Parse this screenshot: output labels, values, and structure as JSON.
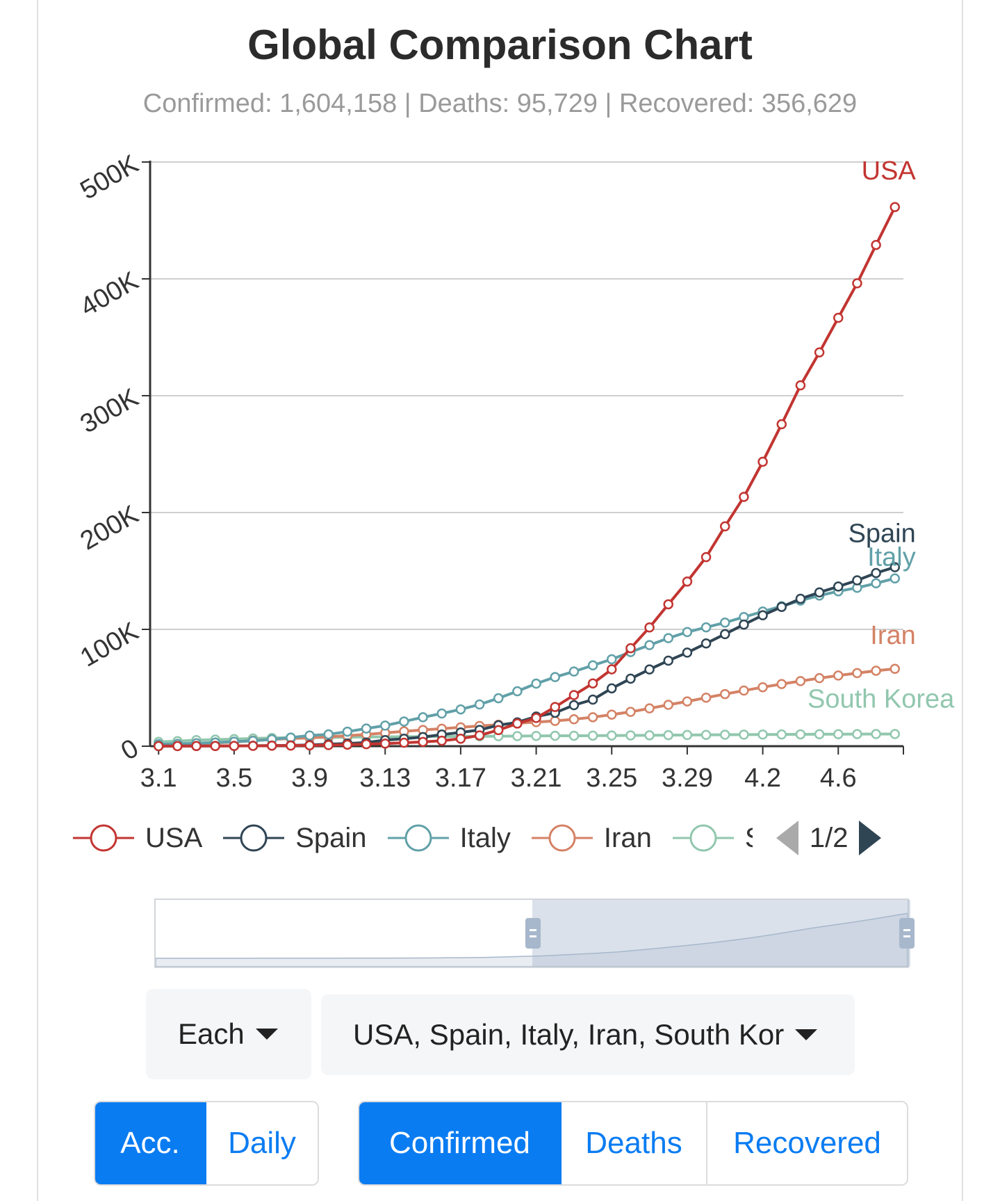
{
  "title": "Global Comparison Chart",
  "summary": "Confirmed: 1,604,158 | Deaths: 95,729 | Recovered: 356,629",
  "legend": {
    "items": [
      {
        "label": "USA",
        "color": "#c23531"
      },
      {
        "label": "Spain",
        "color": "#2f4554"
      },
      {
        "label": "Italy",
        "color": "#61a0a8"
      },
      {
        "label": "Iran",
        "color": "#d48265"
      },
      {
        "label": "S",
        "color": "#91c7ae"
      }
    ],
    "page": "1/2"
  },
  "controls": {
    "mode_select": "Each",
    "countries_select": "USA, Spain, Italy, Iran, South Kor",
    "accumulation": [
      {
        "label": "Acc.",
        "active": true
      },
      {
        "label": "Daily",
        "active": false
      }
    ],
    "metric": [
      {
        "label": "Confirmed",
        "active": true
      },
      {
        "label": "Deaths",
        "active": false
      },
      {
        "label": "Recovered",
        "active": false
      }
    ]
  },
  "chart_data": {
    "type": "line",
    "title": "Global Comparison Chart",
    "xlabel": "",
    "ylabel": "",
    "ylim": [
      0,
      500000
    ],
    "yticks": [
      "0",
      "100K",
      "200K",
      "300K",
      "400K",
      "500K"
    ],
    "xtick_labels": [
      "3.1",
      "3.5",
      "3.9",
      "3.13",
      "3.17",
      "3.21",
      "3.25",
      "3.29",
      "4.2",
      "4.6"
    ],
    "grid": true,
    "legend_position": "bottom",
    "x": [
      "3.1",
      "3.2",
      "3.3",
      "3.4",
      "3.5",
      "3.6",
      "3.7",
      "3.8",
      "3.9",
      "3.10",
      "3.11",
      "3.12",
      "3.13",
      "3.14",
      "3.15",
      "3.16",
      "3.17",
      "3.18",
      "3.19",
      "3.20",
      "3.21",
      "3.22",
      "3.23",
      "3.24",
      "3.25",
      "3.26",
      "3.27",
      "3.28",
      "3.29",
      "3.30",
      "3.31",
      "4.1",
      "4.2",
      "4.3",
      "4.4",
      "4.5",
      "4.6",
      "4.7",
      "4.8",
      "4.9"
    ],
    "series": [
      {
        "name": "USA",
        "color": "#c23531",
        "end_label": "USA",
        "values": [
          75,
          100,
          124,
          158,
          221,
          319,
          435,
          541,
          704,
          994,
          1301,
          1697,
          2247,
          2943,
          3680,
          4663,
          6411,
          9259,
          13789,
          19383,
          24207,
          33546,
          43734,
          53740,
          65778,
          83836,
          101657,
          121465,
          140909,
          161831,
          188172,
          213372,
          243453,
          275586,
          308850,
          337072,
          366667,
          396223,
          429052,
          461437
        ]
      },
      {
        "name": "Spain",
        "color": "#2f4554",
        "end_label": "Spain",
        "values": [
          84,
          120,
          165,
          222,
          259,
          400,
          500,
          673,
          1073,
          1695,
          2277,
          3146,
          5232,
          6391,
          7798,
          9942,
          11748,
          13910,
          17963,
          20410,
          25374,
          28603,
          35136,
          39885,
          49515,
          57786,
          65719,
          73235,
          80110,
          87956,
          95923,
          104118,
          112065,
          119199,
          126168,
          131646,
          136675,
          141942,
          148220,
          153222
        ]
      },
      {
        "name": "Italy",
        "color": "#61a0a8",
        "end_label": "Italy",
        "values": [
          1694,
          2036,
          2502,
          3089,
          3858,
          4636,
          5883,
          7375,
          9172,
          10149,
          12462,
          15113,
          17660,
          21157,
          24747,
          27980,
          31506,
          35713,
          41035,
          47021,
          53578,
          59138,
          63927,
          69176,
          74386,
          80589,
          86498,
          92472,
          97689,
          101739,
          105792,
          110574,
          115242,
          119827,
          124632,
          128948,
          132547,
          135586,
          139422,
          143626
        ]
      },
      {
        "name": "Iran",
        "color": "#d48265",
        "end_label": "Iran",
        "values": [
          978,
          1501,
          2336,
          2922,
          3513,
          4747,
          5823,
          6566,
          7161,
          8042,
          9000,
          10075,
          11364,
          12729,
          13938,
          14991,
          16169,
          17361,
          18407,
          19644,
          20610,
          21638,
          23049,
          24811,
          27017,
          29406,
          32332,
          35408,
          38309,
          41495,
          44605,
          47593,
          50468,
          53183,
          55743,
          58226,
          60500,
          62589,
          64586,
          66220
        ]
      },
      {
        "name": "South Korea",
        "color": "#91c7ae",
        "end_label": "South Korea",
        "values": [
          3736,
          4335,
          5186,
          5621,
          6088,
          6593,
          7041,
          7314,
          7478,
          7513,
          7755,
          7869,
          7979,
          8086,
          8162,
          8236,
          8320,
          8413,
          8565,
          8652,
          8799,
          8897,
          8961,
          9037,
          9137,
          9241,
          9332,
          9478,
          9583,
          9661,
          9786,
          9887,
          9976,
          10062,
          10156,
          10237,
          10284,
          10331,
          10384,
          10423
        ]
      }
    ]
  },
  "slider": {
    "start_percent": 50,
    "end_percent": 100
  }
}
